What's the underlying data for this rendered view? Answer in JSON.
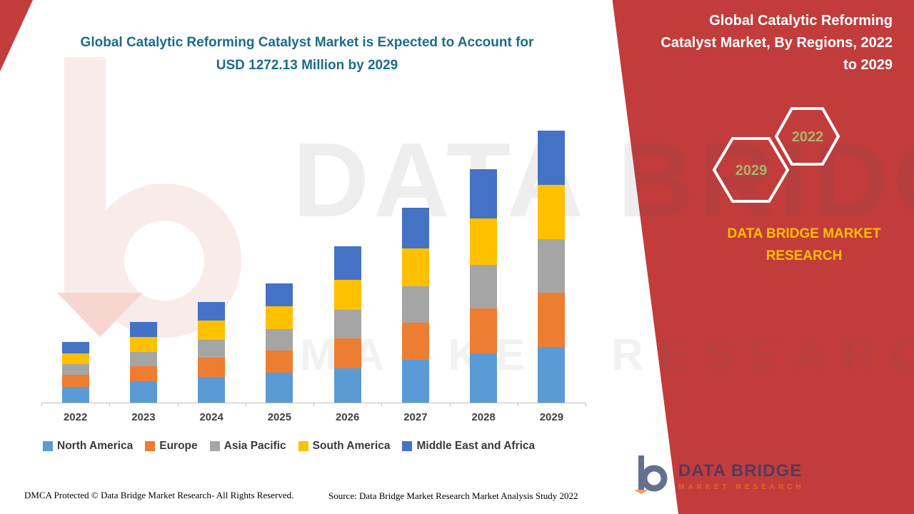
{
  "header": {
    "main_title": "Global Catalytic Reforming Catalyst Market is Expected to Account for USD 1272.13 Million by 2029"
  },
  "side_panel": {
    "title": "Global Catalytic Reforming Catalyst Market, By Regions, 2022 to 2029",
    "hexagon_front_label": "2029",
    "hexagon_back_label": "2022",
    "brand": "DATA BRIDGE MARKET RESEARCH",
    "bg_color": "#C23C3C",
    "brand_color": "#FFC000",
    "hex_label_color": "#A9B46B"
  },
  "watermark": {
    "line1": "DATA BRIDGE",
    "line2": "MARKET RESEARCH"
  },
  "logo": {
    "name": "DATA BRIDGE",
    "subtitle": "MARKET RESEARCH"
  },
  "footer": {
    "left": "DMCA Protected © Data Bridge Market Research- All Rights Reserved.",
    "source": "Source: Data Bridge Market Research Market Analysis Study 2022"
  },
  "chart_data": {
    "type": "bar",
    "stacked": true,
    "title": "Global Catalytic Reforming Catalyst Market, By Regions, 2022 to 2029",
    "unit": "USD Million",
    "categories": [
      "2022",
      "2023",
      "2024",
      "2025",
      "2026",
      "2027",
      "2028",
      "2029"
    ],
    "series": [
      {
        "name": "North America",
        "color": "#5B9BD5",
        "values": [
          75,
          100,
          120,
          140,
          160,
          200,
          230,
          260
        ]
      },
      {
        "name": "Europe",
        "color": "#ED7D31",
        "values": [
          55,
          70,
          90,
          105,
          140,
          175,
          210,
          255
        ]
      },
      {
        "name": "Asia Pacific",
        "color": "#A5A5A5",
        "values": [
          50,
          68,
          85,
          100,
          135,
          170,
          205,
          250
        ]
      },
      {
        "name": "South America",
        "color": "#FFC000",
        "values": [
          52,
          70,
          88,
          105,
          140,
          178,
          215,
          252
        ]
      },
      {
        "name": "Middle East and Africa",
        "color": "#4472C4",
        "values": [
          52,
          69,
          88,
          108,
          156,
          189,
          232,
          255.13
        ]
      }
    ],
    "totals_note": "2029 total = 1272.13 USD Million; segment values estimated from bar heights",
    "xlabel": "",
    "ylabel": "",
    "value_axis_visible": false,
    "grid": false,
    "legend_position": "bottom"
  }
}
